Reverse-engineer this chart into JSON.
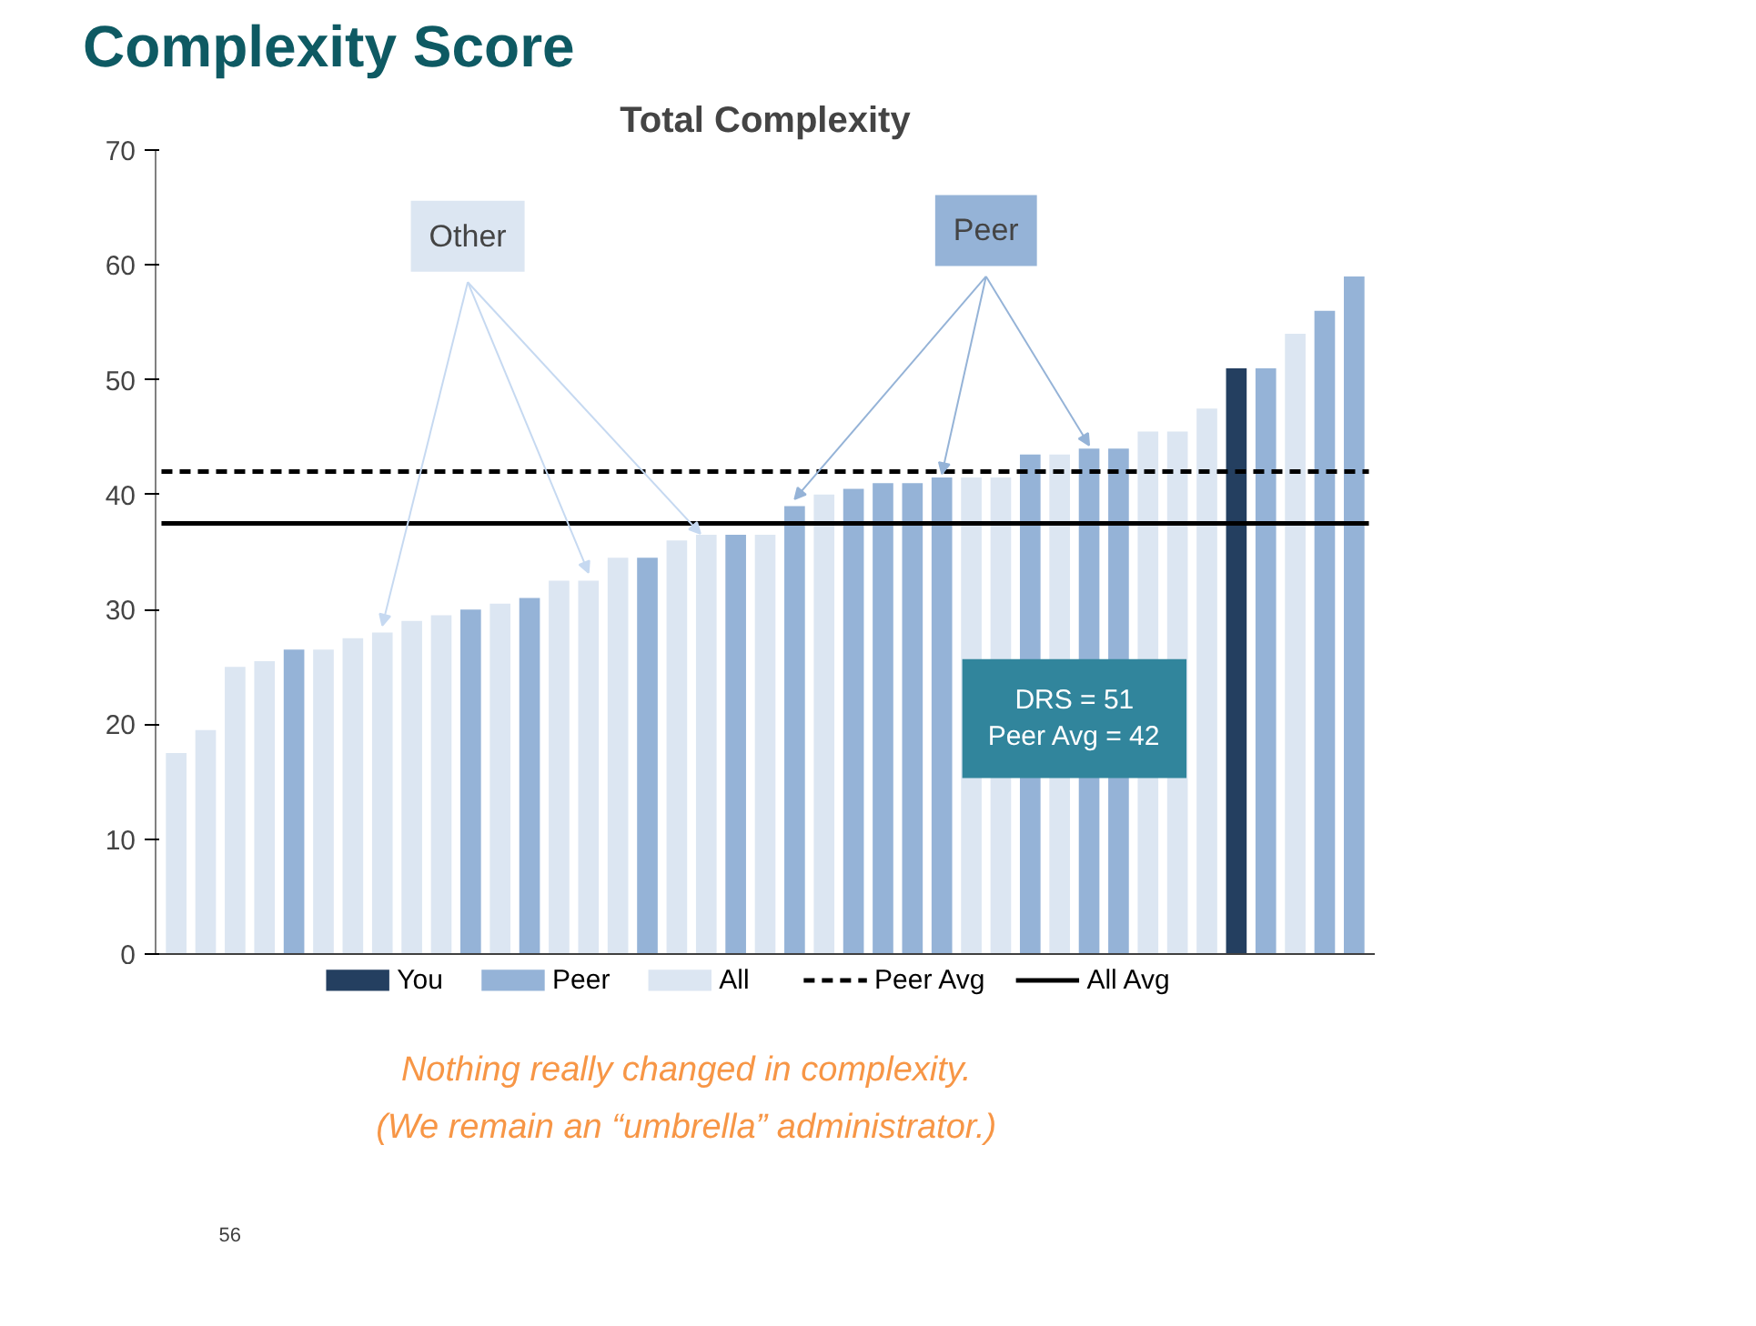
{
  "chart_data": {
    "type": "bar",
    "stacked": true,
    "title": "Complexity Score",
    "subtitle": "Total Complexity",
    "categories": [
      null,
      null,
      null,
      null,
      null,
      null,
      null,
      null,
      null,
      null,
      null,
      null,
      null,
      null,
      null,
      null,
      null,
      null,
      null,
      null,
      null,
      null,
      null,
      null,
      null,
      null,
      null,
      null,
      null,
      null,
      null,
      null,
      null,
      null,
      null,
      null,
      null,
      null,
      null,
      null,
      null
    ],
    "series": [
      {
        "name": "You",
        "color": "#243f60",
        "values": [
          null,
          null,
          null,
          null,
          null,
          null,
          null,
          null,
          null,
          null,
          null,
          null,
          null,
          null,
          null,
          null,
          null,
          null,
          null,
          null,
          null,
          null,
          null,
          null,
          null,
          null,
          null,
          null,
          null,
          null,
          null,
          null,
          null,
          null,
          null,
          null,
          51,
          null,
          null,
          null,
          null
        ]
      },
      {
        "name": "Peer",
        "color": "#95b3d7",
        "values": [
          null,
          null,
          null,
          null,
          26.5,
          null,
          null,
          null,
          null,
          null,
          30,
          null,
          31,
          null,
          null,
          null,
          34.5,
          null,
          null,
          36.5,
          null,
          39,
          null,
          40.5,
          41,
          41,
          41.5,
          null,
          null,
          43.5,
          null,
          44,
          44,
          null,
          null,
          null,
          null,
          51,
          null,
          56,
          59
        ]
      },
      {
        "name": "All",
        "color": "#dce6f2",
        "values": [
          17.5,
          19.5,
          25,
          25.5,
          null,
          26.5,
          27.5,
          28,
          29,
          29.5,
          null,
          30.5,
          null,
          32.5,
          32.5,
          34.5,
          null,
          36,
          36.5,
          null,
          36.5,
          null,
          40,
          null,
          null,
          null,
          null,
          41.5,
          41.5,
          null,
          43.5,
          null,
          null,
          45.5,
          45.5,
          47.5,
          null,
          null,
          54,
          null,
          null
        ]
      }
    ],
    "ylim": [
      0,
      70
    ],
    "yticks": [
      0,
      10,
      20,
      30,
      40,
      50,
      60,
      70
    ],
    "grid": false,
    "legend": "bottom",
    "ref_lines": [
      {
        "axis": "y",
        "value": 42,
        "label": "Peer Avg",
        "color": "#000000",
        "line_style": "dashed"
      },
      {
        "axis": "y",
        "value": 37.5,
        "label": "All Avg",
        "color": "#000000",
        "line_style": "solid"
      }
    ],
    "annotations": [
      "Other",
      "Peer",
      "DRS = 51\nPeer Avg = 42",
      "Nothing really changed in complexity.",
      "(We remain an “umbrella” administrator.)",
      "56"
    ]
  }
}
